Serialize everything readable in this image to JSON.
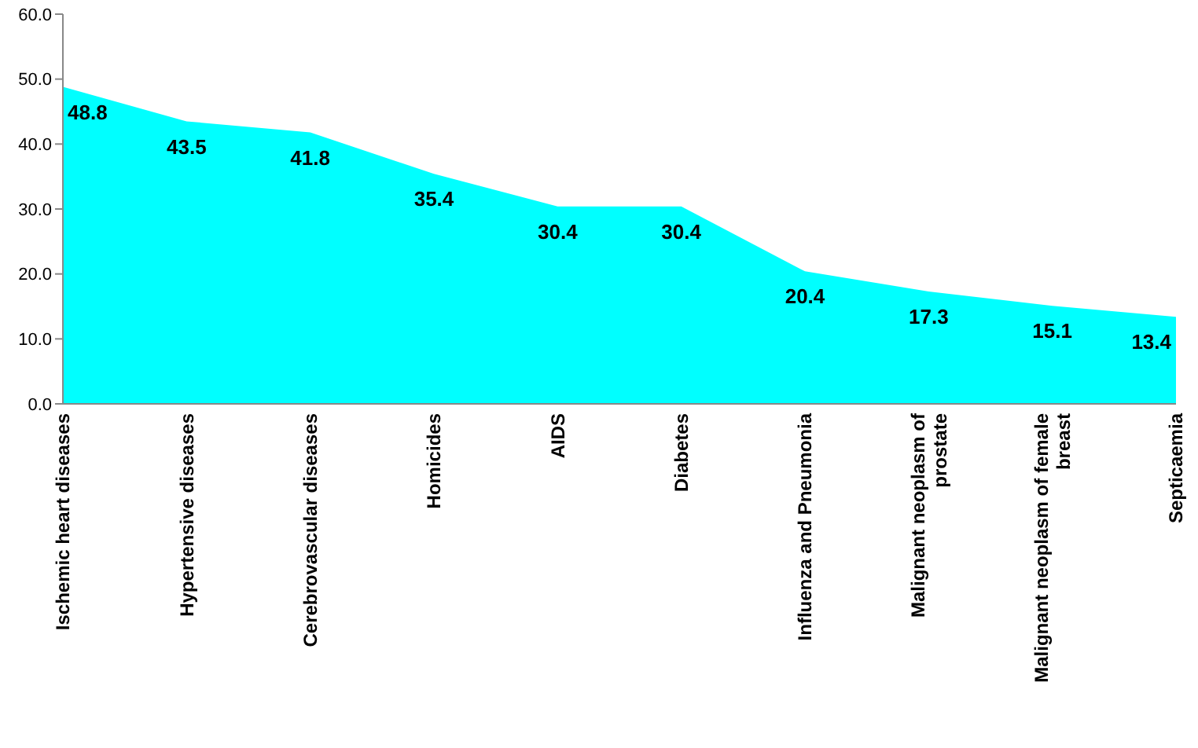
{
  "chart_data": {
    "type": "area",
    "categories": [
      "Ischemic heart diseases",
      "Hypertensive diseases",
      "Cerebrovascular diseases",
      "Homicides",
      "AIDS",
      "Diabetes",
      "Influenza and Pneumonia",
      "Malignant neoplasm of prostate",
      "Malignant neoplasm of female breast",
      "Septicaemia"
    ],
    "values": [
      48.8,
      43.5,
      41.8,
      35.4,
      30.4,
      30.4,
      20.4,
      17.3,
      15.1,
      13.4
    ],
    "color": "#00ffff",
    "ylim": [
      0,
      60
    ],
    "yticks": [
      {
        "value": 0,
        "label": "0.0"
      },
      {
        "value": 10,
        "label": "10.0"
      },
      {
        "value": 20,
        "label": "20.0"
      },
      {
        "value": 30,
        "label": "30.0"
      },
      {
        "value": 40,
        "label": "40.0"
      },
      {
        "value": 50,
        "label": "50.0"
      },
      {
        "value": 60,
        "label": "60.0"
      }
    ],
    "data_labels": true,
    "grid": false
  }
}
